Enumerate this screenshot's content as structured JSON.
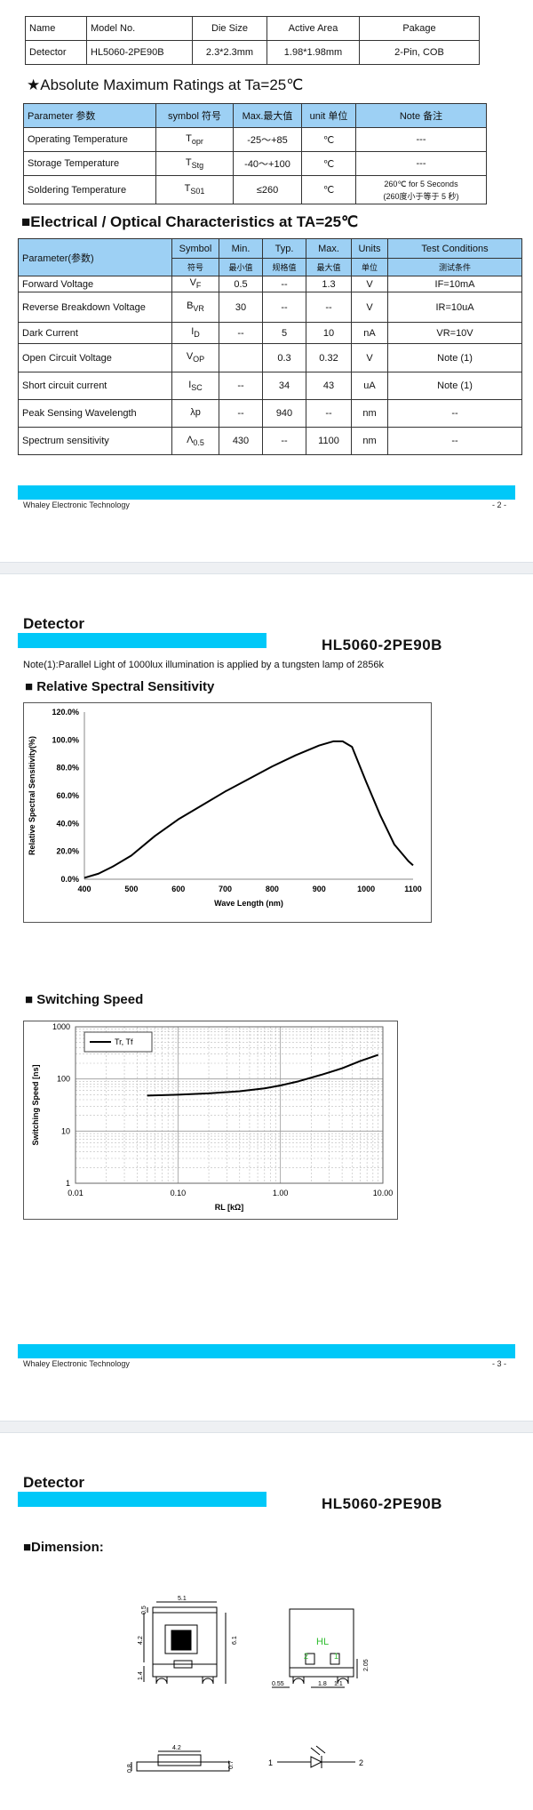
{
  "page2": {
    "summary_table": {
      "headers": [
        "Name",
        "Model No.",
        "Die Size",
        "Active Area",
        "Pakage"
      ],
      "row": [
        "Detector",
        "HL5060-2PE90B",
        "2.3*2.3mm",
        "1.98*1.98mm",
        "2-Pin, COB"
      ]
    },
    "abs_title": "★Absolute Maximum Ratings at Ta=25℃",
    "abs_table": {
      "headers": [
        "Parameter 参数",
        "symbol 符号",
        "Max.最大值",
        "unit 单位",
        "Note 备注"
      ],
      "rows": [
        [
          "Operating Temperature",
          "T",
          "opr",
          "-25～+85",
          "℃",
          "---",
          ""
        ],
        [
          "Storage Temperature",
          "T",
          "Stg",
          "-40～+100",
          "℃",
          "---",
          ""
        ],
        [
          "Soldering Temperature",
          "T",
          "S01",
          "≤260",
          "℃",
          "260℃ for 5 Seconds",
          "(260度小于等于 5 秒)"
        ]
      ]
    },
    "elec_title": "■Electrical / Optical Characteristics at TA=25℃",
    "elec_table": {
      "param_header": "Parameter(参数)",
      "headers_en": [
        "Symbol",
        "Min.",
        "Typ.",
        "Max.",
        "Units",
        "Test Conditions"
      ],
      "headers_cn": [
        "符号",
        "最小值",
        "规格值",
        "最大值",
        "单位",
        "测试条件"
      ],
      "rows": [
        [
          "Forward Voltage",
          "V",
          "F",
          "0.5",
          "--",
          "1.3",
          "V",
          "IF=10mA"
        ],
        [
          "Reverse Breakdown Voltage",
          "B",
          "VR",
          "30",
          "--",
          "--",
          "V",
          "IR=10uA"
        ],
        [
          "Dark Current",
          "I",
          "D",
          "--",
          "5",
          "10",
          "nA",
          "VR=10V"
        ],
        [
          "Open Circuit Voltage",
          "V",
          "OP",
          "",
          "0.3",
          "0.32",
          "V",
          "Note (1)"
        ],
        [
          "Short circuit current",
          "I",
          "SC",
          "--",
          "34",
          "43",
          "uA",
          "Note (1)"
        ],
        [
          "Peak Sensing Wavelength",
          "λp",
          "",
          "--",
          "940",
          "--",
          "nm",
          "--"
        ],
        [
          "Spectrum sensitivity",
          "Λ",
          "0.5",
          "430",
          "--",
          "1100",
          "nm",
          "--"
        ]
      ]
    },
    "footer_left": "Whaley Electronic Technology",
    "footer_right": "- 2 -"
  },
  "page3": {
    "title": "Detector",
    "model": "HL5060-2PE90B",
    "note": "Note(1):Parallel Light of 1000lux illumination is applied by a tungsten lamp of 2856k",
    "spectral_title": "■  Relative Spectral Sensitivity",
    "switching_title": "■  Switching Speed",
    "footer_left": "Whaley Electronic Technology",
    "footer_right": "- 3 -"
  },
  "page4": {
    "title": "Detector",
    "model": "HL5060-2PE90B",
    "dimension_title": "■Dimension:",
    "dims": {
      "top_width": "5.1",
      "top_height": "0.5",
      "side_left": "4.2",
      "side_right": "6.1",
      "bottom_left": "1.4",
      "right_label": "HL",
      "pin2": "2",
      "pin1": "1",
      "right_h": "2.05",
      "d055": "0.55",
      "d18": "1.8",
      "d11": "1.1",
      "bottom_width": "4.2",
      "bottom_h": "0.8",
      "bottom_r": "0.7",
      "sym_1": "1",
      "sym_2": "2"
    }
  },
  "chart_data": [
    {
      "type": "line",
      "title": "",
      "xlabel": "Wave Length (nm)",
      "ylabel": "Relative Spectral Sensitivity(%)",
      "xlim": [
        400,
        1100
      ],
      "ylim": [
        0,
        120
      ],
      "x_ticks": [
        "400",
        "500",
        "600",
        "700",
        "800",
        "900",
        "1000",
        "1100"
      ],
      "y_ticks": [
        "0.0%",
        "20.0%",
        "40.0%",
        "60.0%",
        "80.0%",
        "100.0%",
        "120.0%"
      ],
      "grid": false,
      "x": [
        400,
        430,
        460,
        500,
        550,
        600,
        650,
        700,
        750,
        800,
        850,
        900,
        930,
        950,
        970,
        1000,
        1030,
        1060,
        1090,
        1100
      ],
      "series": [
        {
          "values": [
            1,
            4,
            9,
            17,
            31,
            43,
            53,
            63,
            72,
            81,
            89,
            96,
            99,
            99,
            95,
            70,
            46,
            25,
            13,
            10
          ]
        }
      ]
    },
    {
      "type": "line",
      "title": "",
      "xlabel": "RL [kΩ]",
      "ylabel": "Switching Speed [ns]",
      "xscale": "log",
      "yscale": "log",
      "xlim": [
        0.01,
        10
      ],
      "ylim": [
        1,
        1000
      ],
      "x_ticks": [
        "0.01",
        "0.10",
        "1.00",
        "10.00"
      ],
      "y_ticks": [
        "1",
        "10",
        "100",
        "1000"
      ],
      "grid": true,
      "legend": "top-left",
      "x": [
        0.05,
        0.1,
        0.2,
        0.4,
        0.7,
        1.0,
        1.5,
        2.5,
        4,
        6,
        9
      ],
      "series": [
        {
          "name": "Tr, Tf",
          "values": [
            48,
            50,
            53,
            58,
            66,
            75,
            90,
            120,
            160,
            220,
            290
          ]
        }
      ]
    }
  ]
}
